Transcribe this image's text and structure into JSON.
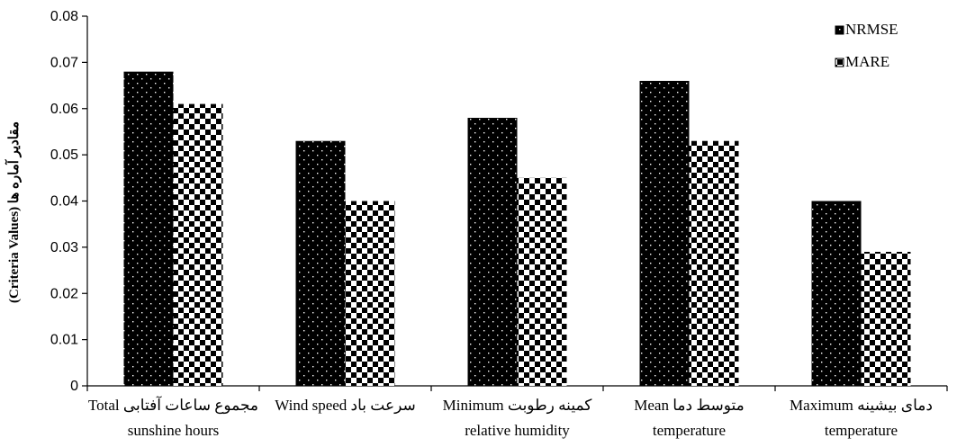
{
  "chart_data": {
    "type": "bar",
    "ylabel": "(Criteria Values) مقادیر آماره ها",
    "ylim": [
      0,
      0.08
    ],
    "yticks": [
      "0",
      "0.01",
      "0.02",
      "0.03",
      "0.04",
      "0.05",
      "0.06",
      "0.07",
      "0.08"
    ],
    "categories": [
      {
        "line1": "Total  مجموع ساعات آفتابی",
        "line2": "sunshine hours"
      },
      {
        "line1": "Wind speed سرعت باد",
        "line2": ""
      },
      {
        "line1": "Minimum   کمینه رطوبت",
        "line2": "relative humidity"
      },
      {
        "line1": "Mean   متوسط دما",
        "line2": "temperature"
      },
      {
        "line1": "Maximum   دمای بیشینه",
        "line2": "temperature"
      }
    ],
    "series": [
      {
        "name": "NRMSE",
        "values": [
          0.068,
          0.053,
          0.058,
          0.066,
          0.04
        ],
        "pattern": "dots-on-black"
      },
      {
        "name": "MARE",
        "values": [
          0.061,
          0.04,
          0.045,
          0.053,
          0.029
        ],
        "pattern": "checkerboard"
      }
    ],
    "legend_position": "top-right",
    "grid": false
  }
}
